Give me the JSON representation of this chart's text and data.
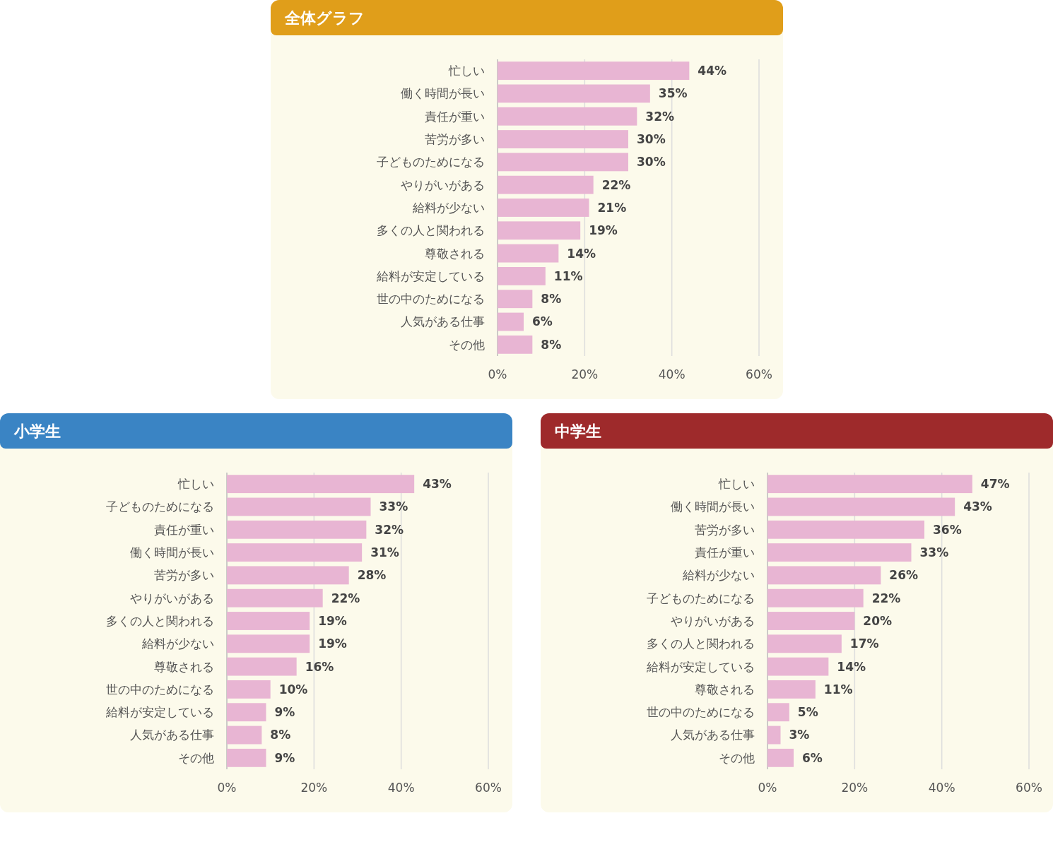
{
  "chart_data": [
    {
      "type": "bar",
      "orientation": "horizontal",
      "title": "全体グラフ",
      "color": "#e8b5d3",
      "grid": "x",
      "xlim": [
        0,
        60
      ],
      "xticks": [
        {
          "value": 0,
          "label": "0%"
        },
        {
          "value": 20,
          "label": "20%"
        },
        {
          "value": 40,
          "label": "40%"
        },
        {
          "value": 60,
          "label": "60%"
        }
      ],
      "categories": [
        "忙しい",
        "働く時間が長い",
        "責任が重い",
        "苦労が多い",
        "子どものためになる",
        "やりがいがある",
        "給料が少ない",
        "多くの人と関われる",
        "尊敬される",
        "給料が安定している",
        "世の中のためになる",
        "人気がある仕事",
        "その他"
      ],
      "values": [
        44,
        35,
        32,
        30,
        30,
        22,
        21,
        19,
        14,
        11,
        8,
        6,
        8
      ],
      "value_labels": [
        "44%",
        "35%",
        "32%",
        "30%",
        "30%",
        "22%",
        "21%",
        "19%",
        "14%",
        "11%",
        "8%",
        "6%",
        "8%"
      ]
    },
    {
      "type": "bar",
      "orientation": "horizontal",
      "title": "小学生",
      "color": "#e8b5d3",
      "grid": "x",
      "xlim": [
        0,
        60
      ],
      "xticks": [
        {
          "value": 0,
          "label": "0%"
        },
        {
          "value": 20,
          "label": "20%"
        },
        {
          "value": 40,
          "label": "40%"
        },
        {
          "value": 60,
          "label": "60%"
        }
      ],
      "categories": [
        "忙しい",
        "子どものためになる",
        "責任が重い",
        "働く時間が長い",
        "苦労が多い",
        "やりがいがある",
        "多くの人と関われる",
        "給料が少ない",
        "尊敬される",
        "世の中のためになる",
        "給料が安定している",
        "人気がある仕事",
        "その他"
      ],
      "values": [
        43,
        33,
        32,
        31,
        28,
        22,
        19,
        19,
        16,
        10,
        9,
        8,
        9
      ],
      "value_labels": [
        "43%",
        "33%",
        "32%",
        "31%",
        "28%",
        "22%",
        "19%",
        "19%",
        "16%",
        "10%",
        "9%",
        "8%",
        "9%"
      ]
    },
    {
      "type": "bar",
      "orientation": "horizontal",
      "title": "中学生",
      "color": "#e8b5d3",
      "grid": "x",
      "xlim": [
        0,
        60
      ],
      "xticks": [
        {
          "value": 0,
          "label": "0%"
        },
        {
          "value": 20,
          "label": "20%"
        },
        {
          "value": 40,
          "label": "40%"
        },
        {
          "value": 60,
          "label": "60%"
        }
      ],
      "categories": [
        "忙しい",
        "働く時間が長い",
        "苦労が多い",
        "責任が重い",
        "給料が少ない",
        "子どものためになる",
        "やりがいがある",
        "多くの人と関われる",
        "給料が安定している",
        "尊敬される",
        "世の中のためになる",
        "人気がある仕事",
        "その他"
      ],
      "values": [
        47,
        43,
        36,
        33,
        26,
        22,
        20,
        17,
        14,
        11,
        5,
        3,
        6
      ],
      "value_labels": [
        "47%",
        "43%",
        "36%",
        "33%",
        "26%",
        "22%",
        "20%",
        "17%",
        "14%",
        "11%",
        "5%",
        "3%",
        "6%"
      ]
    }
  ]
}
